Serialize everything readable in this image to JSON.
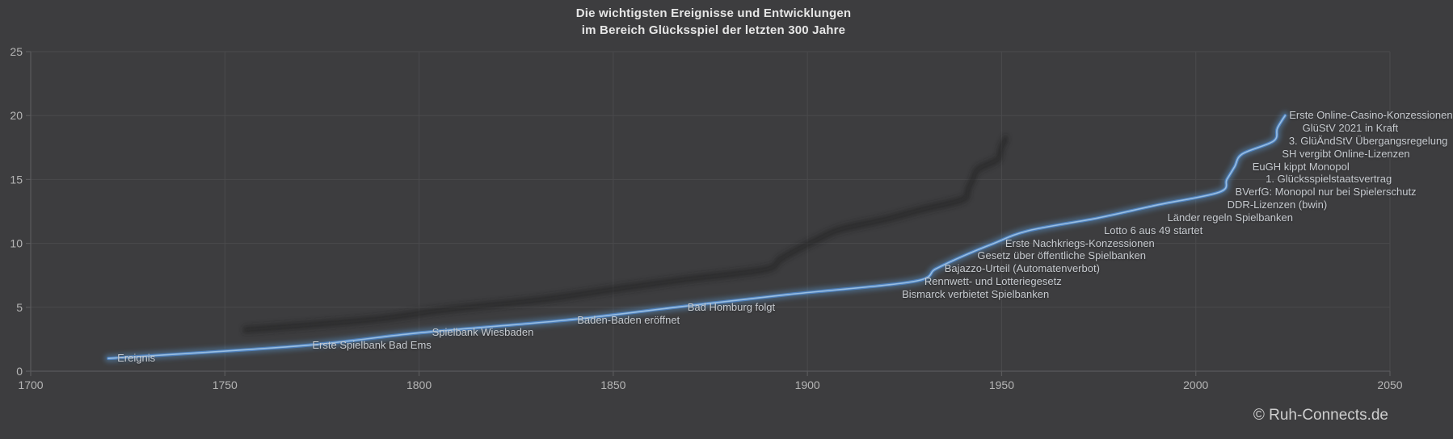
{
  "title": {
    "line1": "Die wichtigsten Ereignisse und Entwicklungen",
    "line2": "im Bereich Glücksspiel der letzten 300 Jahre"
  },
  "footer": {
    "copyright": "© Ruh-Connects.de"
  },
  "colors": {
    "background": "#3d3d3f",
    "gridline": "#4a4a4c",
    "axis": "#5a5a5c",
    "tick_label": "#b5b5b5",
    "event_label": "#c7cbd0",
    "title": "#e6e6e6",
    "line_core": "#4f81bd",
    "line_highlight": "#a6c9e8",
    "line_glow": "#5b9bd5",
    "shadow": "#1a1b1d"
  },
  "chart_data": {
    "type": "line",
    "title": "Die wichtigsten Ereignisse und Entwicklungen im Bereich Glücksspiel der letzten 300 Jahre",
    "series_name": "Ereignis",
    "xlabel": "",
    "ylabel": "",
    "xlim": [
      1700,
      2050
    ],
    "ylim": [
      0,
      25
    ],
    "x_ticks": [
      1700,
      1750,
      1800,
      1850,
      1900,
      1950,
      2000,
      2050
    ],
    "y_ticks": [
      0,
      5,
      10,
      15,
      20,
      25
    ],
    "grid": true,
    "legend": "none",
    "points": [
      {
        "label": "Ereignis",
        "year": 1720,
        "value": 1,
        "label_dx": 11
      },
      {
        "label": "Erste Spielbank Bad Ems",
        "year": 1770,
        "value": 2,
        "label_dx": 12
      },
      {
        "label": "Spielbank Wiesbaden",
        "year": 1800,
        "value": 3,
        "label_dx": 16
      },
      {
        "label": "Baden-Baden eröffnet",
        "year": 1838,
        "value": 4,
        "label_dx": 13
      },
      {
        "label": "Bad Homburg folgt",
        "year": 1866,
        "value": 5,
        "label_dx": 15
      },
      {
        "label": "Bismarck verbietet Spielbanken",
        "year": 1895,
        "value": 6,
        "label_dx": 141
      },
      {
        "label": "Rennwett- und Lotteriegesetz",
        "year": 1927,
        "value": 7,
        "label_dx": 15
      },
      {
        "label": "Bajazzo-Urteil (Automatenverbot)",
        "year": 1933,
        "value": 8,
        "label_dx": 11
      },
      {
        "label": "Gesetz über öffentliche Spielbanken",
        "year": 1940,
        "value": 9,
        "label_dx": 18
      },
      {
        "label": "Erste Nachkriegs-Konzessionen",
        "year": 1948,
        "value": 10,
        "label_dx": 14
      },
      {
        "label": "Lotto 6 aus 49 startet",
        "year": 1957,
        "value": 11,
        "label_dx": 93
      },
      {
        "label": "Länder regeln Spielbanken",
        "year": 1975,
        "value": 12,
        "label_dx": 85
      },
      {
        "label": "DDR-Lizenzen (bwin)",
        "year": 1990,
        "value": 13,
        "label_dx": 87
      },
      {
        "label": "BVerfG: Monopol nur bei Spielerschutz",
        "year": 2006,
        "value": 14,
        "label_dx": 20
      },
      {
        "label": "1. Glücksspielstaatsvertrag",
        "year": 2008,
        "value": 15,
        "label_dx": 48
      },
      {
        "label": "EuGH kippt Monopol",
        "year": 2010,
        "value": 16,
        "label_dx": 22
      },
      {
        "label": "SH vergibt Online-Lizenzen",
        "year": 2012,
        "value": 17,
        "label_dx": 49
      },
      {
        "label": "3. GlüÄndStV Übergangsregelung",
        "year": 2020,
        "value": 18,
        "label_dx": 19
      },
      {
        "label": "GlüStV 2021 in Kraft",
        "year": 2021,
        "value": 19,
        "label_dx": 31
      },
      {
        "label": "Erste Online-Casino-Konzessionen",
        "year": 2023,
        "value": 20,
        "label_dx": 5
      }
    ]
  }
}
